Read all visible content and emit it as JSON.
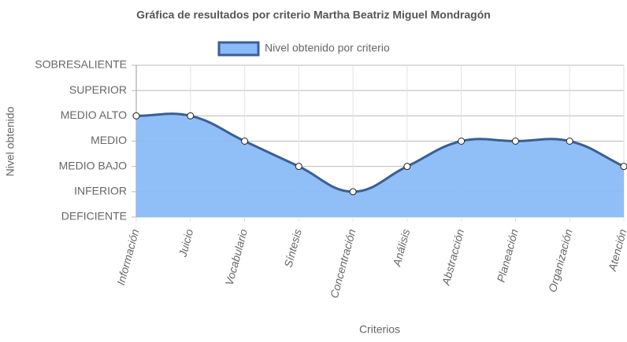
{
  "chart_data": {
    "type": "line",
    "title": "Gráfica de resultados por criterio Martha Beatriz Miguel Mondragón",
    "x_label": "Criterios",
    "y_label": "Nivel obtenido",
    "categories": [
      "Información",
      "Juicio",
      "Vocabulario",
      "Síntesis",
      "Concentración",
      "Análisis",
      "Abstracción",
      "Planeación",
      "Organización",
      "Atención"
    ],
    "series": [
      {
        "name": "Nivel obtenido por criterio",
        "color": "#3a5f94",
        "fill": "#8abaf7",
        "values": [
          4,
          4,
          3,
          2,
          1,
          2,
          3,
          3,
          3,
          2
        ]
      }
    ],
    "ylim": [
      0,
      6
    ],
    "yticks": [
      {
        "value": 0,
        "label": "DEFICIENTE"
      },
      {
        "value": 1,
        "label": "INFERIOR"
      },
      {
        "value": 2,
        "label": "MEDIO BAJO"
      },
      {
        "value": 3,
        "label": "MEDIO"
      },
      {
        "value": 4,
        "label": "MEDIO ALTO"
      },
      {
        "value": 5,
        "label": "SUPERIOR"
      },
      {
        "value": 6,
        "label": "SOBRESALIENTE"
      }
    ],
    "grid": true
  }
}
